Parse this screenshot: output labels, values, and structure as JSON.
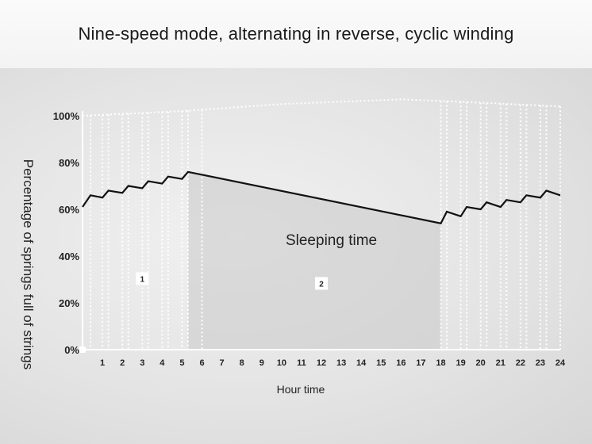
{
  "header": {
    "title": "Nine-speed mode, alternating in reverse, cyclic winding"
  },
  "chart_data": {
    "type": "line",
    "title": "Nine-speed mode, alternating in reverse, cyclic winding",
    "xlabel": "Hour time",
    "ylabel": "Percentage of springs full of strings",
    "xlim": [
      0,
      24
    ],
    "ylim": [
      0,
      100
    ],
    "x_ticks": [
      "1",
      "2",
      "3",
      "4",
      "5",
      "6",
      "7",
      "8",
      "9",
      "10",
      "11",
      "12",
      "13",
      "14",
      "15",
      "16",
      "17",
      "18",
      "19",
      "20",
      "21",
      "22",
      "23",
      "24"
    ],
    "y_ticks": [
      "0%",
      "20%",
      "40%",
      "60%",
      "80%",
      "100%"
    ],
    "series": [
      {
        "values": [
          {
            "x": 0,
            "y": 61
          },
          {
            "x": 0.4,
            "y": 66
          },
          {
            "x": 1,
            "y": 65
          },
          {
            "x": 1.3,
            "y": 68
          },
          {
            "x": 2,
            "y": 67
          },
          {
            "x": 2.3,
            "y": 70
          },
          {
            "x": 3,
            "y": 69
          },
          {
            "x": 3.3,
            "y": 72
          },
          {
            "x": 4,
            "y": 71
          },
          {
            "x": 4.3,
            "y": 74
          },
          {
            "x": 5,
            "y": 73
          },
          {
            "x": 5.3,
            "y": 76
          },
          {
            "x": 18,
            "y": 54
          },
          {
            "x": 18.3,
            "y": 59
          },
          {
            "x": 19,
            "y": 57
          },
          {
            "x": 19.3,
            "y": 61
          },
          {
            "x": 20,
            "y": 60
          },
          {
            "x": 20.3,
            "y": 63
          },
          {
            "x": 21,
            "y": 61
          },
          {
            "x": 21.3,
            "y": 64
          },
          {
            "x": 22,
            "y": 63
          },
          {
            "x": 22.3,
            "y": 66
          },
          {
            "x": 23,
            "y": 65
          },
          {
            "x": 23.3,
            "y": 68
          },
          {
            "x": 24,
            "y": 66
          }
        ]
      }
    ],
    "guide_lines_x": [
      0.4,
      1,
      1.3,
      2,
      2.3,
      3,
      3.3,
      4,
      4.3,
      5,
      5.3,
      6,
      18,
      18.3,
      19,
      19.3,
      20,
      20.3,
      21,
      21.3,
      22,
      22.3,
      23,
      23.3,
      24
    ],
    "top_boundary": [
      {
        "x": 0,
        "y": 100
      },
      {
        "x": 5,
        "y": 102
      },
      {
        "x": 10,
        "y": 105
      },
      {
        "x": 16,
        "y": 107
      },
      {
        "x": 19,
        "y": 106
      },
      {
        "x": 24,
        "y": 104
      }
    ],
    "annotations": [
      {
        "text": "Sleeping time",
        "x": 12.5,
        "y": 44
      }
    ],
    "regions": [
      {
        "label": "1",
        "x": 3,
        "y": 30
      },
      {
        "label": "2",
        "x": 12,
        "y": 28
      }
    ],
    "grid": false,
    "colors": {
      "line": "#111111",
      "guides": "#ffffff",
      "shading": "#c9c9c9"
    }
  }
}
